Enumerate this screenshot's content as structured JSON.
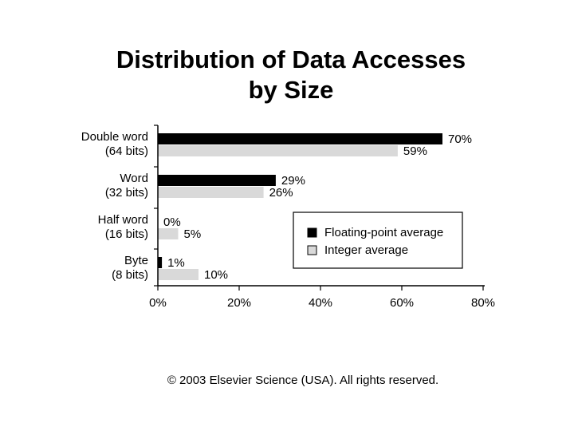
{
  "title": {
    "line1": "Distribution of Data Accesses",
    "line2": "by Size"
  },
  "chart_data": {
    "type": "bar",
    "orientation": "horizontal",
    "categories": [
      [
        "Double word",
        "(64 bits)"
      ],
      [
        "Word",
        "(32 bits)"
      ],
      [
        "Half word",
        "(16 bits)"
      ],
      [
        "Byte",
        "(8 bits)"
      ]
    ],
    "series": [
      {
        "name": "Floating-point average",
        "values": [
          70,
          29,
          0,
          1
        ],
        "labels": [
          "70%",
          "29%",
          "0%",
          "1%"
        ],
        "color": "#000000"
      },
      {
        "name": "Integer average",
        "values": [
          59,
          26,
          5,
          10
        ],
        "labels": [
          "59%",
          "26%",
          "5%",
          "10%"
        ],
        "color": "#d9d9d9"
      }
    ],
    "xlim": [
      0,
      80
    ],
    "xticks": [
      0,
      20,
      40,
      60,
      80
    ],
    "xtick_labels": [
      "0%",
      "20%",
      "40%",
      "60%",
      "80%"
    ],
    "grid": false,
    "legend_position": "bottom-right"
  },
  "copyright": "© 2003 Elsevier Science (USA). All rights reserved."
}
